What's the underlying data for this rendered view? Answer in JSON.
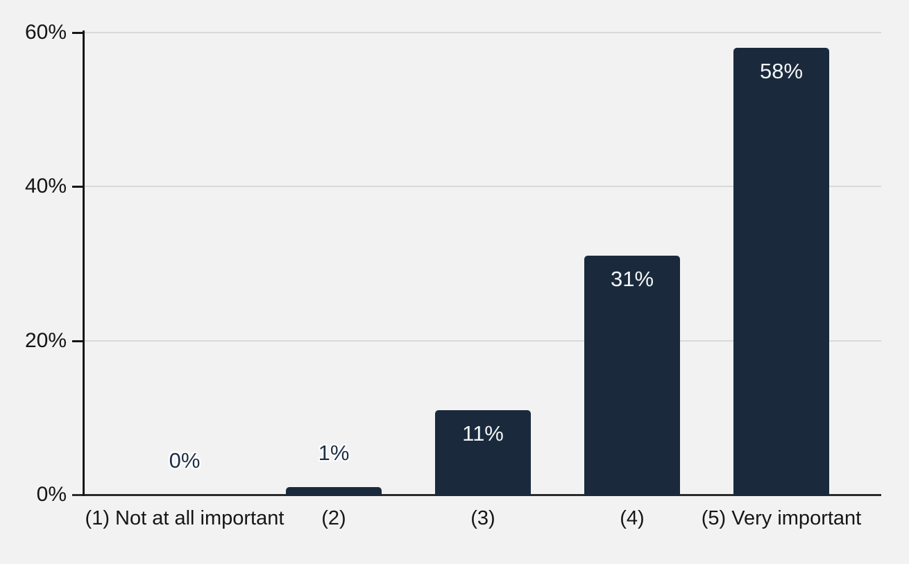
{
  "chart_data": {
    "type": "bar",
    "title": "",
    "xlabel": "",
    "ylabel": "",
    "categories": [
      "(1) Not at all important",
      "(2)",
      "(3)",
      "(4)",
      "(5) Very important"
    ],
    "values": [
      0,
      1,
      11,
      31,
      58
    ],
    "data_labels": [
      "0%",
      "1%",
      "11%",
      "31%",
      "58%"
    ],
    "yticks": [
      0,
      20,
      40,
      60
    ],
    "ytick_labels": [
      "0%",
      "20%",
      "40%",
      "60%"
    ],
    "ylim": [
      0,
      60
    ],
    "grid": "horizontal",
    "legend_position": "none",
    "colors": {
      "bar": "#1a2a3c",
      "background": "#f2f2f2",
      "gridline": "#d9d9d9",
      "axis": "#1f1f1f",
      "label_inside": "#f3f5f8",
      "label_outside": "#1e3048"
    }
  }
}
